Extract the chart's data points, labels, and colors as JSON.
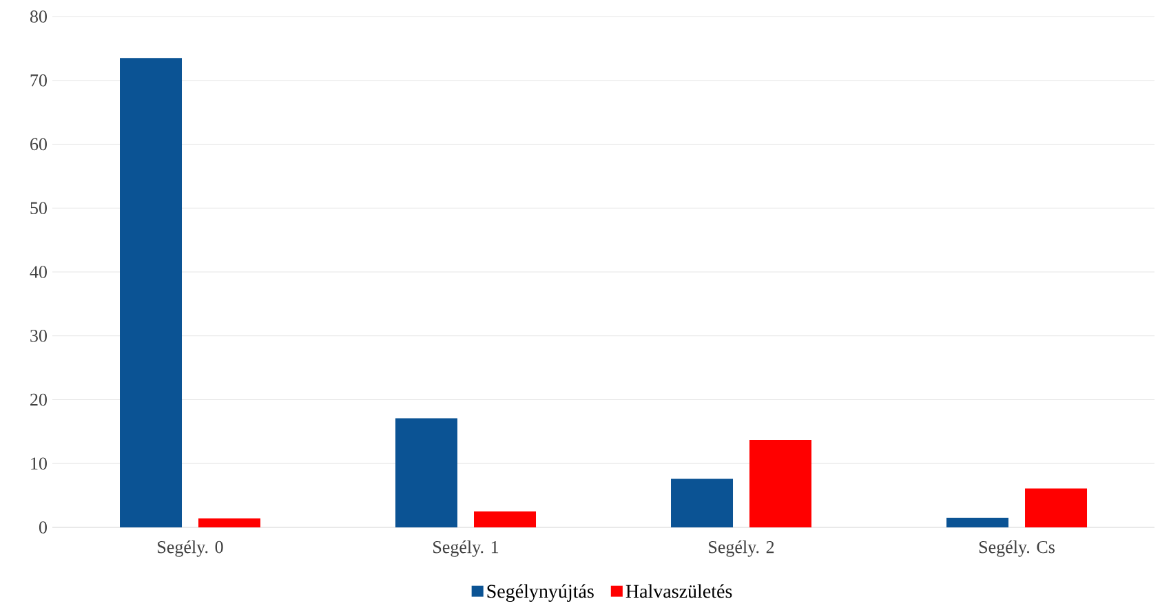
{
  "chart_data": {
    "type": "bar",
    "categories": [
      "Segély. 0",
      "Segély. 1",
      "Segély. 2",
      "Segély. Cs"
    ],
    "series": [
      {
        "name": "Segélynyújtás",
        "color": "#0b5394",
        "values": [
          73.5,
          17.1,
          7.6,
          1.5
        ]
      },
      {
        "name": "Halvaszületés",
        "color": "#ff0000",
        "values": [
          1.4,
          2.5,
          13.7,
          6.1
        ]
      }
    ],
    "ylim": [
      0,
      80
    ],
    "yticks": [
      0,
      10,
      20,
      30,
      40,
      50,
      60,
      70,
      80
    ],
    "grid": "y",
    "legend": "bottom"
  }
}
